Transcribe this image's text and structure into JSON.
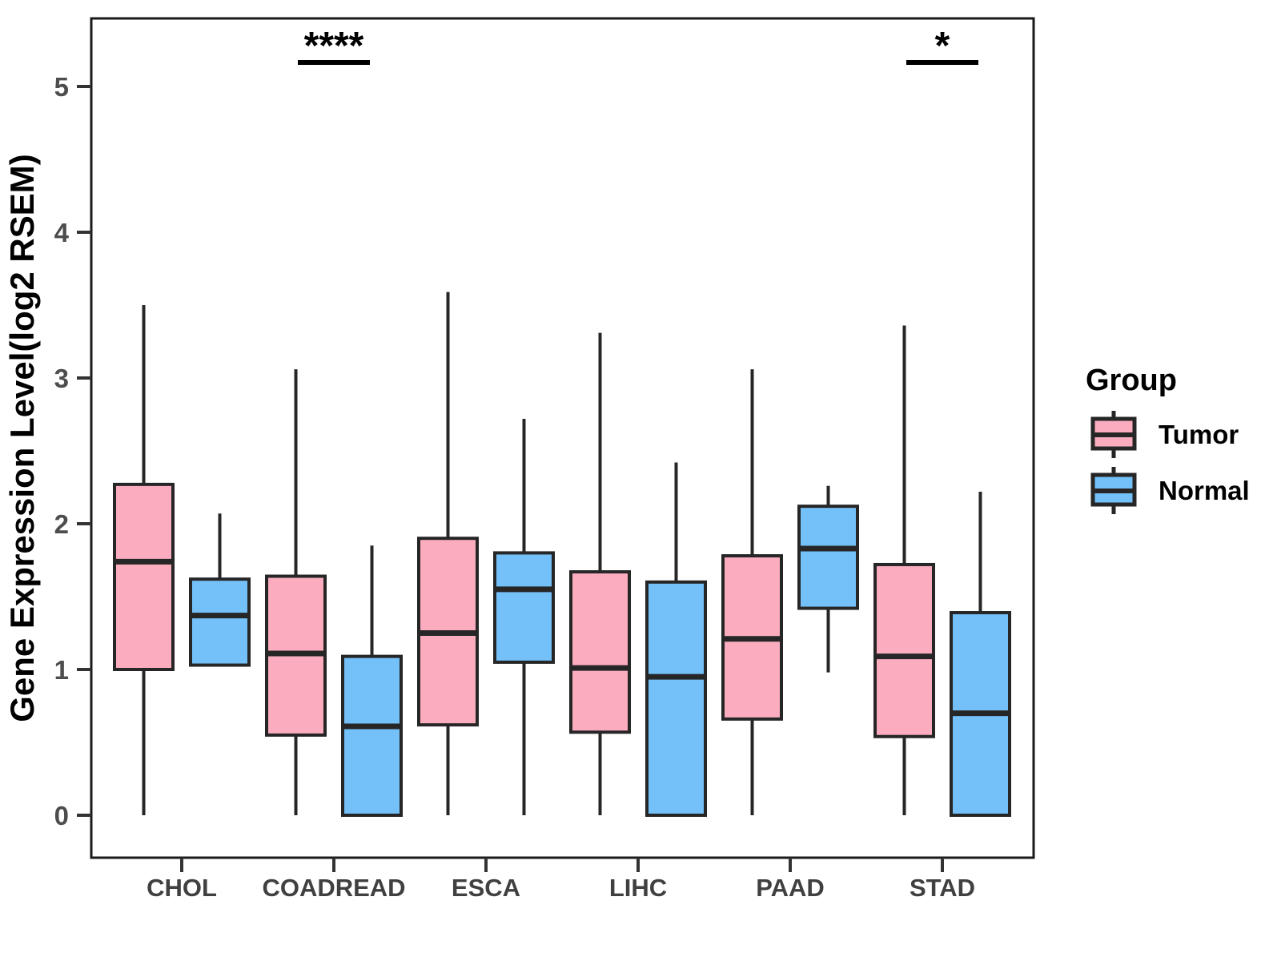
{
  "chart_data": {
    "type": "boxplot",
    "title": "",
    "xlabel": "",
    "ylabel": "Gene Expression Level(log2 RSEM)",
    "ylim": [
      0,
      5
    ],
    "yticks": [
      0,
      1,
      2,
      3,
      4,
      5
    ],
    "grid": "off",
    "legend_position": "right",
    "legend_title": "Group",
    "categories": [
      "CHOL",
      "COADREAD",
      "ESCA",
      "LIHC",
      "PAAD",
      "STAD"
    ],
    "groups": [
      {
        "name": "Tumor",
        "color": "#FBADBF"
      },
      {
        "name": "Normal",
        "color": "#74C0F8"
      }
    ],
    "series": [
      {
        "category": "CHOL",
        "group": "Tumor",
        "low": 0.0,
        "q1": 1.0,
        "median": 1.74,
        "q3": 2.27,
        "high": 3.5
      },
      {
        "category": "CHOL",
        "group": "Normal",
        "low": 1.03,
        "q1": 1.03,
        "median": 1.37,
        "q3": 1.62,
        "high": 2.07
      },
      {
        "category": "COADREAD",
        "group": "Tumor",
        "low": 0.0,
        "q1": 0.55,
        "median": 1.11,
        "q3": 1.64,
        "high": 3.06
      },
      {
        "category": "COADREAD",
        "group": "Normal",
        "low": 0.0,
        "q1": 0.0,
        "median": 0.61,
        "q3": 1.09,
        "high": 1.85
      },
      {
        "category": "ESCA",
        "group": "Tumor",
        "low": 0.0,
        "q1": 0.62,
        "median": 1.25,
        "q3": 1.9,
        "high": 3.59
      },
      {
        "category": "ESCA",
        "group": "Normal",
        "low": 0.0,
        "q1": 1.05,
        "median": 1.55,
        "q3": 1.8,
        "high": 2.72
      },
      {
        "category": "LIHC",
        "group": "Tumor",
        "low": 0.0,
        "q1": 0.57,
        "median": 1.01,
        "q3": 1.67,
        "high": 3.31
      },
      {
        "category": "LIHC",
        "group": "Normal",
        "low": 0.0,
        "q1": 0.0,
        "median": 0.95,
        "q3": 1.6,
        "high": 2.42
      },
      {
        "category": "PAAD",
        "group": "Tumor",
        "low": 0.0,
        "q1": 0.66,
        "median": 1.21,
        "q3": 1.78,
        "high": 3.06
      },
      {
        "category": "PAAD",
        "group": "Normal",
        "low": 0.98,
        "q1": 1.42,
        "median": 1.83,
        "q3": 2.12,
        "high": 2.26
      },
      {
        "category": "STAD",
        "group": "Tumor",
        "low": 0.0,
        "q1": 0.54,
        "median": 1.09,
        "q3": 1.72,
        "high": 3.36
      },
      {
        "category": "STAD",
        "group": "Normal",
        "low": 0.0,
        "q1": 0.0,
        "median": 0.7,
        "q3": 1.39,
        "high": 2.22
      }
    ],
    "significance": [
      {
        "category": "COADREAD",
        "label": "****"
      },
      {
        "category": "STAD",
        "label": "*"
      }
    ],
    "colors": {
      "box_border": "#262626",
      "panel_border": "#1a1a1a",
      "axis_ticks": "#333333",
      "tick_labels": "#4d4d4d",
      "category_labels": "#404040",
      "axis_title": "#000000",
      "significance": "#000000",
      "background": "#ffffff"
    }
  }
}
